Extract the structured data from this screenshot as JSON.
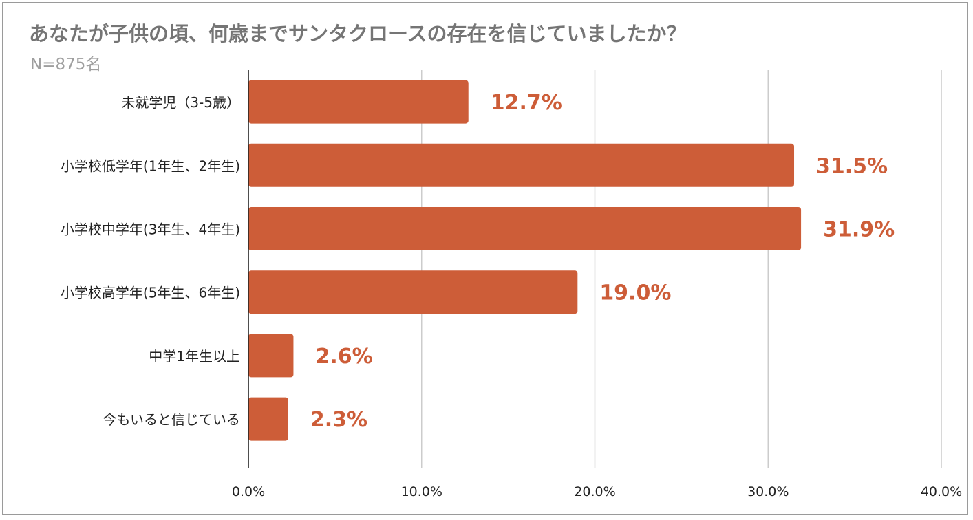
{
  "chart_data": {
    "type": "bar",
    "orientation": "horizontal",
    "title": "あなたが子供の頃、何歳までサンタクロースの存在を信じていましたか？",
    "subtitle": "N=875名",
    "categories": [
      "未就学児（3-5歳）",
      "小学校低学年(1年生、2年生)",
      "小学校中学年(3年生、4年生)",
      "小学校高学年(5年生、6年生)",
      "中学1年生以上",
      "今もいると信じている"
    ],
    "values": [
      12.7,
      31.5,
      31.9,
      19.0,
      2.6,
      2.3
    ],
    "data_labels": [
      "12.7%",
      "31.5%",
      "31.9%",
      "19.0%",
      "2.6%",
      "2.3%"
    ],
    "x_ticks": [
      0,
      10,
      20,
      30,
      40
    ],
    "x_tick_labels": [
      "0.0%",
      "10.0%",
      "20.0%",
      "30.0%",
      "40.0%"
    ],
    "xlim": [
      0,
      40
    ],
    "grid": true,
    "xlabel": "",
    "ylabel": "",
    "colors": {
      "bar": "#cd5d38",
      "label": "#cd5d38",
      "grid": "#cccccc",
      "axis": "#222222",
      "title": "#757575",
      "subtitle": "#9e9e9e"
    }
  }
}
